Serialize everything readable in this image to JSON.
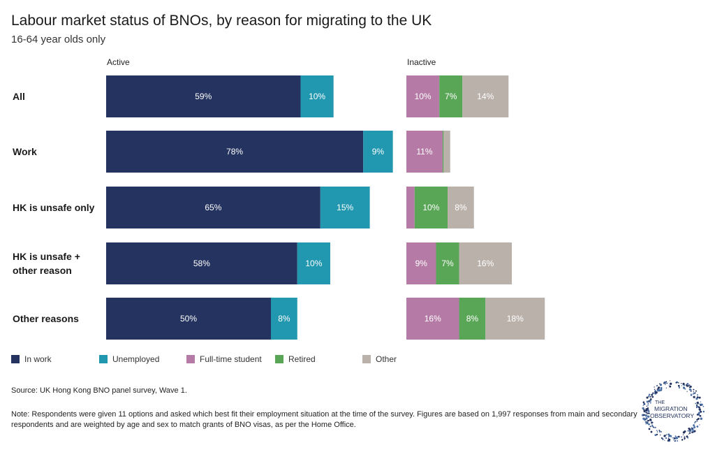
{
  "title": "Labour market status of BNOs, by reason for migrating to the UK",
  "subtitle": "16-64 year olds only",
  "panels": {
    "active": "Active",
    "inactive": "Inactive"
  },
  "legend": [
    {
      "name": "In work",
      "color": "#24335f"
    },
    {
      "name": "Unemployed",
      "color": "#2197b0"
    },
    {
      "name": "Full-time student",
      "color": "#b57ba6"
    },
    {
      "name": "Retired",
      "color": "#5aa657"
    },
    {
      "name": "Other",
      "color": "#bbb1ab"
    }
  ],
  "source": "Source: UK Hong Kong BNO panel survey, Wave 1.",
  "note": "Note: Respondents were given 11 options and asked which best fit their employment situation at the time of the survey. Figures are based on 1,997 responses from main and secondary respondents and are weighted by age and sex to match grants of BNO visas, as per the Home Office.",
  "logo": {
    "line1": "THE",
    "line2": "MIGRATION",
    "line3": "OBSERVATORY"
  },
  "chart_data": {
    "type": "bar",
    "orientation": "horizontal",
    "stacked": true,
    "categories": [
      [
        "All"
      ],
      [
        "Work"
      ],
      [
        "HK is unsafe only"
      ],
      [
        "HK is unsafe +",
        "other reason"
      ],
      [
        "Other reasons"
      ]
    ],
    "active_series": [
      {
        "name": "In work",
        "values": [
          59,
          78,
          65,
          58,
          50
        ],
        "labels": [
          "59%",
          "78%",
          "65%",
          "58%",
          "50%"
        ]
      },
      {
        "name": "Unemployed",
        "values": [
          10,
          9,
          15,
          10,
          8
        ],
        "labels": [
          "10%",
          "9%",
          "15%",
          "10%",
          "8%"
        ]
      }
    ],
    "inactive_series": [
      {
        "name": "Full-time student",
        "values": [
          10,
          11,
          2.5,
          9,
          16
        ],
        "labels": [
          "10%",
          "11%",
          "",
          "9%",
          "16%"
        ]
      },
      {
        "name": "Retired",
        "values": [
          7,
          0.3,
          10,
          7,
          8
        ],
        "labels": [
          "7%",
          "",
          "10%",
          "7%",
          "8%"
        ]
      },
      {
        "name": "Other",
        "values": [
          14,
          2,
          8,
          16,
          18
        ],
        "labels": [
          "14%",
          "",
          "8%",
          "16%",
          "18%"
        ]
      }
    ]
  }
}
